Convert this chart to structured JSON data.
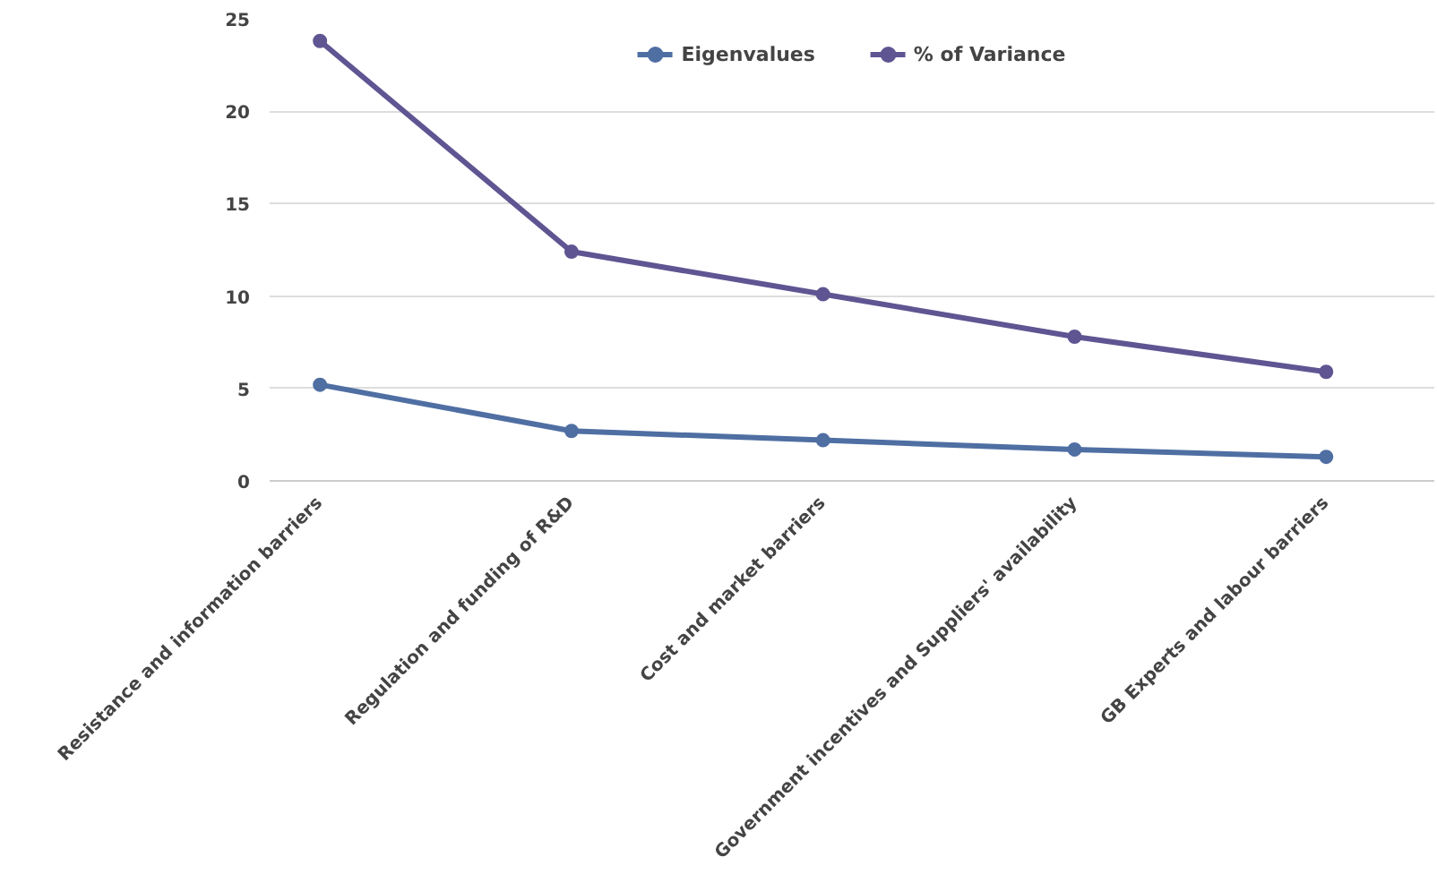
{
  "chart_data": {
    "type": "line",
    "categories": [
      "Resistance and information barriers",
      "Regulation and funding of R&D",
      "Cost and market barriers",
      "Government incentives and Suppliers' availability",
      "GB Experts and labour barriers"
    ],
    "series": [
      {
        "name": "Eigenvalues",
        "color": "#4f6fa3",
        "values": [
          5.2,
          2.7,
          2.2,
          1.7,
          1.3
        ]
      },
      {
        "name": "% of Variance",
        "color": "#5f5592",
        "values": [
          23.8,
          12.4,
          10.1,
          7.8,
          5.9
        ]
      }
    ],
    "ylim": [
      0,
      25
    ],
    "yticks": [
      0,
      5,
      10,
      15,
      20,
      25
    ],
    "grid": "y",
    "legend": "top",
    "marker": "circle",
    "line_style": "solid"
  }
}
